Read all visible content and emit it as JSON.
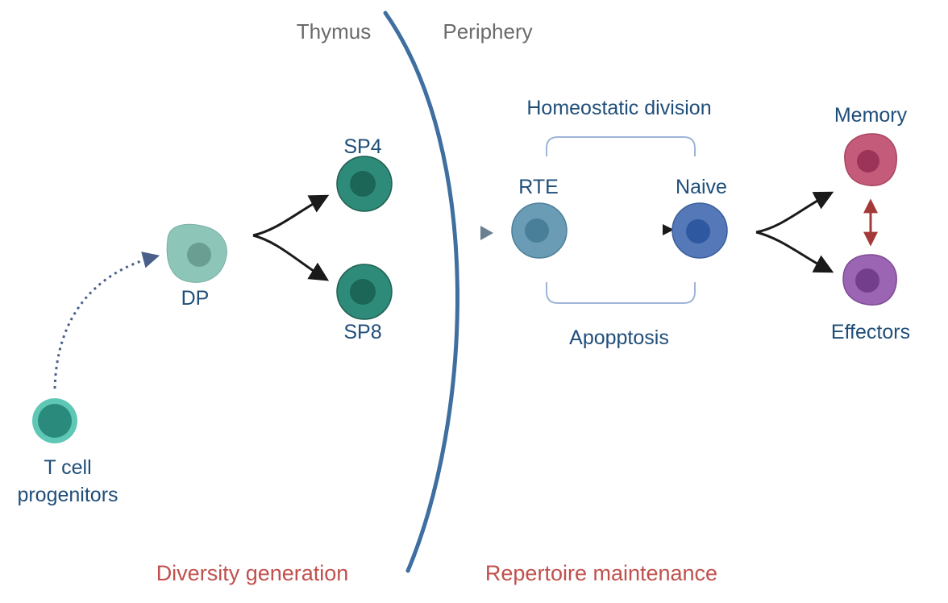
{
  "regions": {
    "thymus": "Thymus",
    "periphery": "Periphery"
  },
  "cells": {
    "progenitors_line1": "T cell",
    "progenitors_line2": "progenitors",
    "dp": "DP",
    "sp4": "SP4",
    "sp8": "SP8",
    "rte": "RTE",
    "naive": "Naive",
    "memory": "Memory",
    "effectors": "Effectors"
  },
  "processes": {
    "homeostatic_division": "Homeostatic division",
    "apoptosis": "Apopptosis"
  },
  "phases": {
    "diversity_generation": "Diversity generation",
    "repertoire_maintenance": "Repertoire maintenance"
  },
  "colors": {
    "label_blue": "#1f4e79",
    "region_gray": "#6b6b6b",
    "phase_red": "#c0504d",
    "barrier": "#3f6fa0",
    "bracket": "#9fb4d6",
    "progenitor_outer": "#5ec7b5",
    "progenitor_nucleus": "#2a8a7c",
    "dp_outer": "#8ec5b9",
    "dp_nucleus": "#6a9e93",
    "sp_outer": "#2e8b7a",
    "sp_nucleus": "#1b6656",
    "rte_outer": "#6a9cb5",
    "rte_nucleus": "#4a7f99",
    "naive_outer": "#5578b8",
    "naive_nucleus": "#2e58a0",
    "memory_outer": "#c45b7a",
    "memory_nucleus": "#9c3358",
    "effector_outer": "#9b65b3",
    "effector_nucleus": "#733f8c",
    "interconversion_arrow": "#a33a3a"
  }
}
